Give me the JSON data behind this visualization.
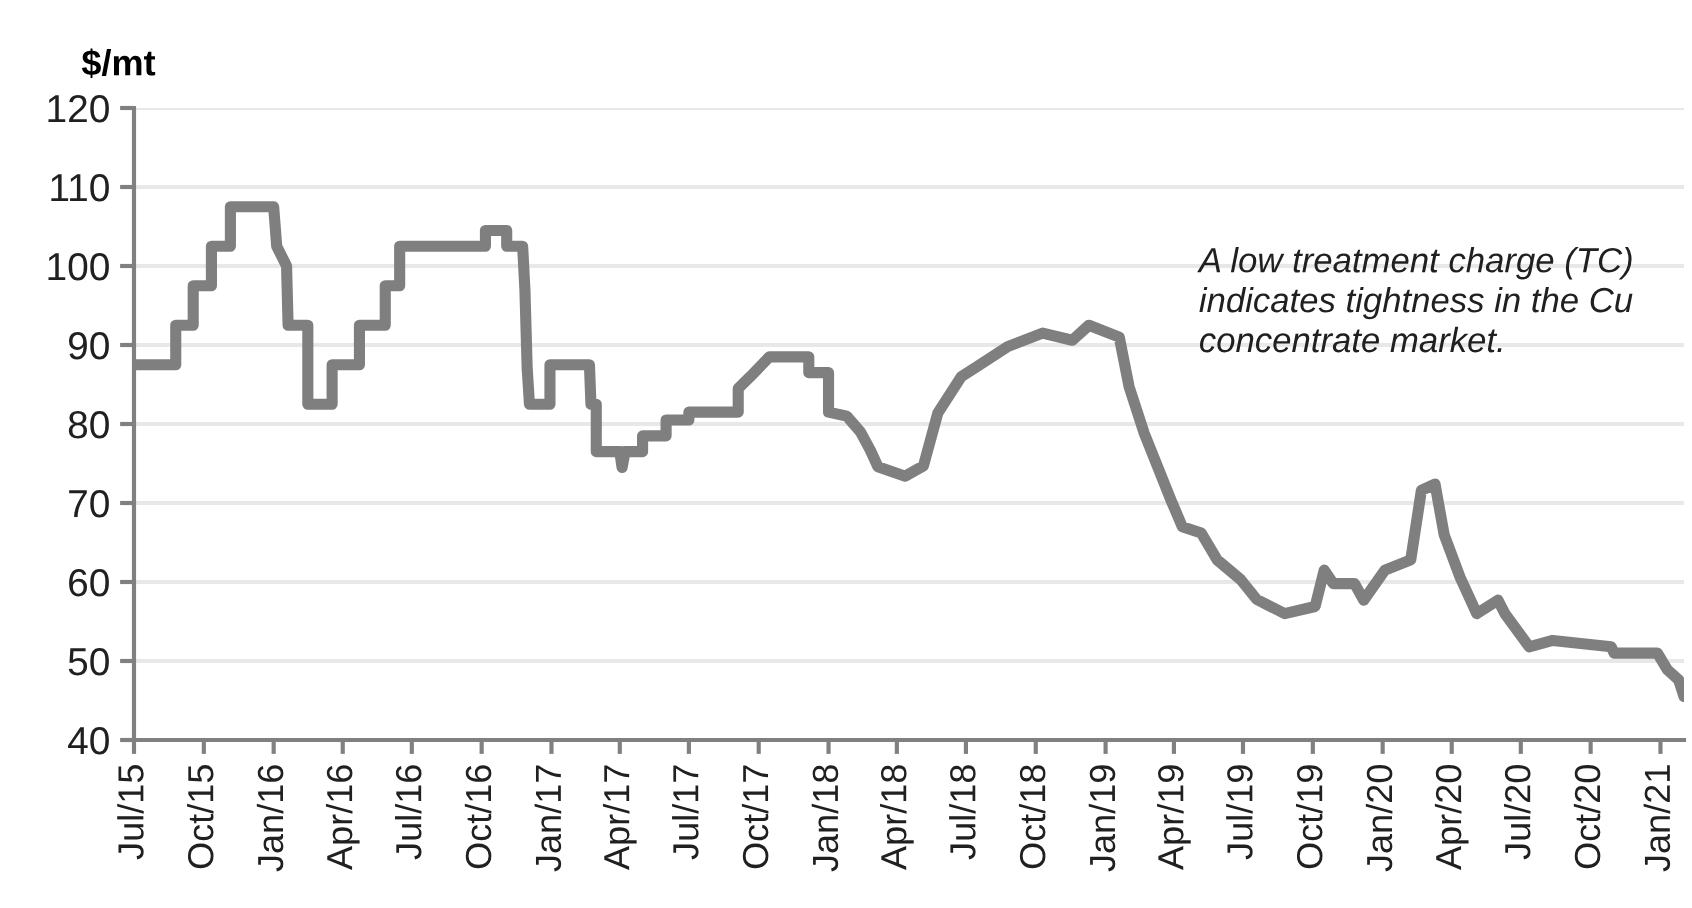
{
  "chart_data": {
    "type": "line",
    "ylabel": "$/mt",
    "annotations": [
      "A low treatment charge (TC)\nindicates tightness in the Cu\nconcentrate market."
    ],
    "ylim": [
      40,
      120
    ],
    "yticks": [
      40,
      50,
      60,
      70,
      80,
      90,
      100,
      110,
      120
    ],
    "grid": "y",
    "marker": "none",
    "line_style": "solid",
    "xlim": [
      "2015-07-01",
      "2021-02-01"
    ],
    "xticks": [
      {
        "value": "2015-07-01",
        "label": "Jul/15"
      },
      {
        "value": "2015-10-01",
        "label": "Oct/15"
      },
      {
        "value": "2016-01-01",
        "label": "Jan/16"
      },
      {
        "value": "2016-04-01",
        "label": "Apr/16"
      },
      {
        "value": "2016-07-01",
        "label": "Jul/16"
      },
      {
        "value": "2016-10-01",
        "label": "Oct/16"
      },
      {
        "value": "2017-01-01",
        "label": "Jan/17"
      },
      {
        "value": "2017-04-01",
        "label": "Apr/17"
      },
      {
        "value": "2017-07-01",
        "label": "Jul/17"
      },
      {
        "value": "2017-10-01",
        "label": "Oct/17"
      },
      {
        "value": "2018-01-01",
        "label": "Jan/18"
      },
      {
        "value": "2018-04-01",
        "label": "Apr/18"
      },
      {
        "value": "2018-07-01",
        "label": "Jul/18"
      },
      {
        "value": "2018-10-01",
        "label": "Oct/18"
      },
      {
        "value": "2019-01-01",
        "label": "Jan/19"
      },
      {
        "value": "2019-04-01",
        "label": "Apr/19"
      },
      {
        "value": "2019-07-01",
        "label": "Jul/19"
      },
      {
        "value": "2019-10-01",
        "label": "Oct/19"
      },
      {
        "value": "2020-01-01",
        "label": "Jan/20"
      },
      {
        "value": "2020-04-01",
        "label": "Apr/20"
      },
      {
        "value": "2020-07-01",
        "label": "Jul/20"
      },
      {
        "value": "2020-10-01",
        "label": "Oct/20"
      },
      {
        "value": "2021-01-01",
        "label": "Jan/21"
      }
    ],
    "series": [
      {
        "color": "#7f7f7f",
        "x": [
          "2015-07-01",
          "2015-08-25",
          "2015-08-25",
          "2015-09-17",
          "2015-09-17",
          "2015-10-11",
          "2015-10-11",
          "2015-11-05",
          "2015-11-05",
          "2016-01-01",
          "2016-01-05",
          "2016-01-18",
          "2016-01-20",
          "2016-02-15",
          "2016-02-15",
          "2016-03-18",
          "2016-03-18",
          "2016-04-23",
          "2016-04-23",
          "2016-05-27",
          "2016-05-27",
          "2016-06-15",
          "2016-06-15",
          "2016-10-06",
          "2016-10-06",
          "2016-11-03",
          "2016-11-03",
          "2016-11-24",
          "2016-11-27",
          "2016-11-30",
          "2016-12-03",
          "2016-12-30",
          "2016-12-30",
          "2017-02-20",
          "2017-02-22",
          "2017-03-01",
          "2017-03-01",
          "2017-04-01",
          "2017-04-04",
          "2017-04-08",
          "2017-05-01",
          "2017-05-01",
          "2017-06-01",
          "2017-06-01",
          "2017-07-01",
          "2017-07-01",
          "2017-09-04",
          "2017-09-04",
          "2017-09-20",
          "2017-10-15",
          "2017-12-06",
          "2017-12-06",
          "2018-01-01",
          "2018-01-01",
          "2018-01-25",
          "2018-02-12",
          "2018-02-25",
          "2018-03-07",
          "2018-04-12",
          "2018-05-06",
          "2018-05-25",
          "2018-06-25",
          "2018-07-16",
          "2018-08-25",
          "2018-10-10",
          "2018-11-18",
          "2018-12-10",
          "2019-01-19",
          "2019-02-01",
          "2019-02-21",
          "2019-03-28",
          "2019-04-12",
          "2019-05-07",
          "2019-05-28",
          "2019-06-28",
          "2019-07-19",
          "2019-08-25",
          "2019-10-04",
          "2019-10-16",
          "2019-10-28",
          "2019-11-25",
          "2019-12-07",
          "2020-01-04",
          "2020-02-07",
          "2020-02-21",
          "2020-03-10",
          "2020-03-22",
          "2020-04-12",
          "2020-05-04",
          "2020-06-01",
          "2020-06-10",
          "2020-07-12",
          "2020-08-12",
          "2020-10-28",
          "2020-11-01",
          "2020-12-28",
          "2021-01-10",
          "2021-01-25",
          "2021-02-01"
        ],
        "values": [
          87.5,
          87.5,
          92.5,
          92.5,
          97.5,
          97.5,
          102.5,
          102.5,
          107.5,
          107.5,
          102.5,
          100,
          92.5,
          92.5,
          82.5,
          82.5,
          87.5,
          87.5,
          92.5,
          92.5,
          97.5,
          97.5,
          102.5,
          102.5,
          104.5,
          104.5,
          102.5,
          102.5,
          97,
          87,
          82.5,
          82.5,
          87.5,
          87.5,
          82.5,
          82.5,
          76.5,
          76.5,
          74.5,
          76.5,
          76.5,
          78.5,
          78.5,
          80.5,
          80.5,
          81.5,
          81.5,
          84.5,
          86,
          88.5,
          88.5,
          86.5,
          86.5,
          81.5,
          81,
          79,
          76.7,
          74.6,
          73.4,
          74.7,
          81.4,
          86,
          87.3,
          89.8,
          91.5,
          90.6,
          92.5,
          91,
          84.7,
          78.8,
          70.4,
          67,
          66.2,
          62.8,
          60.3,
          57.8,
          56,
          56.9,
          61.5,
          59.8,
          59.8,
          57.7,
          61.5,
          62.8,
          71.6,
          72.4,
          66,
          60.6,
          56,
          57.7,
          56,
          51.8,
          52.6,
          51.8,
          51,
          51,
          48.9,
          47.6,
          45.5
        ]
      }
    ]
  }
}
